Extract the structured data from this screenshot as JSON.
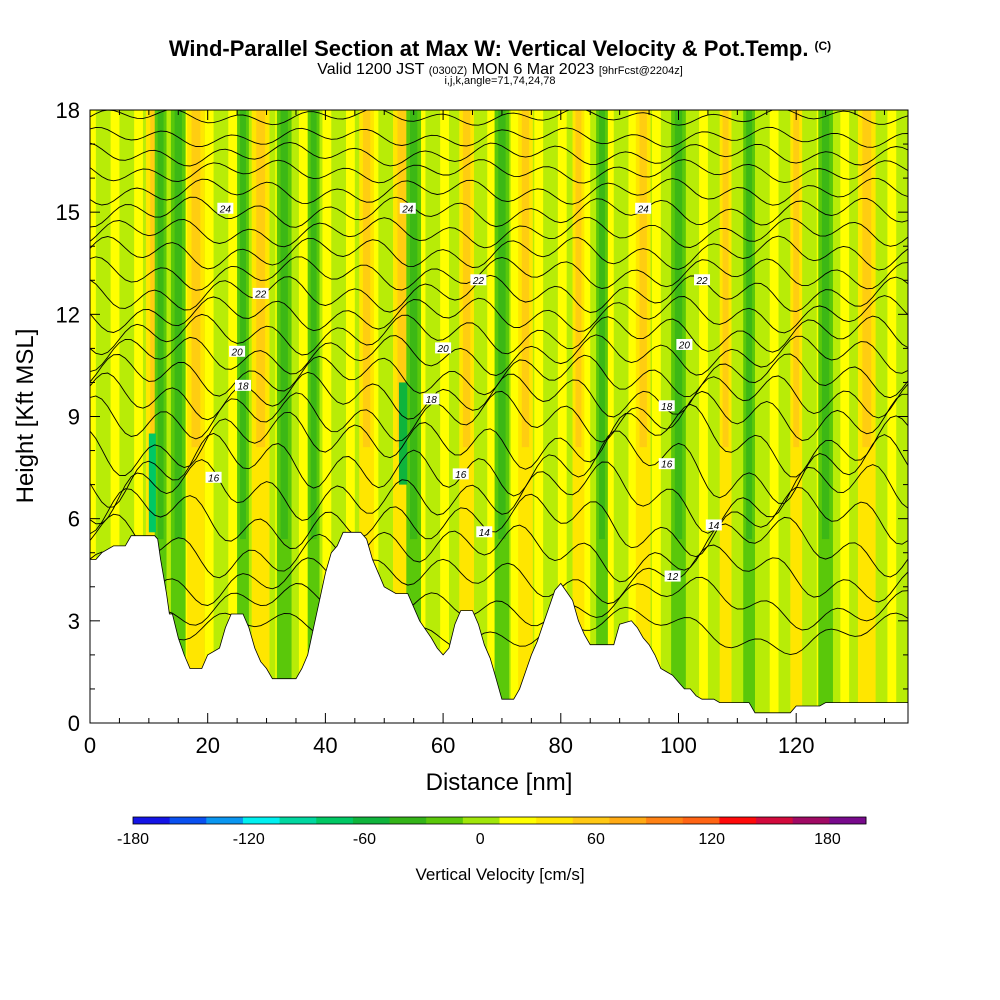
{
  "header": {
    "title": "Wind-Parallel Section at Max W: Vertical Velocity & Pot.Temp.",
    "copyright": "(C)",
    "valid_main": "Valid 1200 JST",
    "valid_utc": "(0300Z)",
    "valid_date": "MON 6 Mar 2023",
    "forecast": "[9hrFcst@2204z]",
    "indices": "i,j,k,angle=71,74,24,78"
  },
  "chart_data": {
    "type": "heatmap",
    "xlabel": "Distance [nm]",
    "ylabel": "Height [Kft MSL]",
    "xlim": [
      0,
      139
    ],
    "ylim": [
      0,
      18
    ],
    "x_ticks": [
      0,
      20,
      40,
      60,
      80,
      100,
      120
    ],
    "y_ticks": [
      0,
      3,
      6,
      9,
      12,
      15,
      18
    ],
    "grid": false,
    "colorbar": {
      "title": "Vertical Velocity [cm/s]",
      "range": [
        -180,
        200
      ],
      "tick_values": [
        -180,
        -120,
        -60,
        0,
        60,
        120,
        180
      ],
      "tick_labels": [
        "-180",
        "-120",
        "-60",
        "0",
        "60",
        "120",
        "180"
      ],
      "colors": [
        "#1414e6",
        "#0a50f0",
        "#0a96f0",
        "#00f0f0",
        "#00d7a0",
        "#00c864",
        "#0fb43c",
        "#34b418",
        "#5ac80a",
        "#a0e60a",
        "#ffff00",
        "#ffe600",
        "#ffc814",
        "#ffaa14",
        "#ff8214",
        "#ff6414",
        "#ff0a0a",
        "#d20a3c",
        "#a00a64",
        "#780a8c"
      ]
    },
    "terrain": [
      [
        0,
        4.8
      ],
      [
        1,
        4.8
      ],
      [
        2,
        5.0
      ],
      [
        4,
        5.2
      ],
      [
        6,
        5.2
      ],
      [
        7,
        5.5
      ],
      [
        11,
        5.5
      ],
      [
        11.5,
        5.4
      ],
      [
        12,
        4.8
      ],
      [
        13,
        3.8
      ],
      [
        13.5,
        3.2
      ],
      [
        14,
        3.2
      ],
      [
        15,
        2.5
      ],
      [
        16,
        2.0
      ],
      [
        17,
        1.6
      ],
      [
        19,
        1.6
      ],
      [
        20,
        2.0
      ],
      [
        22,
        2.2
      ],
      [
        23,
        2.8
      ],
      [
        24,
        3.2
      ],
      [
        26,
        3.2
      ],
      [
        27,
        2.8
      ],
      [
        28,
        2.2
      ],
      [
        29,
        1.8
      ],
      [
        30,
        1.6
      ],
      [
        31,
        1.3
      ],
      [
        35,
        1.3
      ],
      [
        36,
        1.6
      ],
      [
        37,
        2.0
      ],
      [
        38,
        2.8
      ],
      [
        39,
        3.6
      ],
      [
        40,
        4.4
      ],
      [
        41,
        5.0
      ],
      [
        42,
        5.2
      ],
      [
        43,
        5.6
      ],
      [
        46,
        5.6
      ],
      [
        47,
        5.4
      ],
      [
        48,
        4.8
      ],
      [
        49,
        4.4
      ],
      [
        50,
        4.0
      ],
      [
        52,
        3.8
      ],
      [
        54,
        3.8
      ],
      [
        55,
        3.4
      ],
      [
        56,
        3.0
      ],
      [
        58,
        2.5
      ],
      [
        59,
        2.2
      ],
      [
        60,
        2.0
      ],
      [
        61,
        2.2
      ],
      [
        62,
        2.9
      ],
      [
        63,
        3.3
      ],
      [
        65,
        3.3
      ],
      [
        66,
        2.9
      ],
      [
        67,
        2.3
      ],
      [
        68,
        1.9
      ],
      [
        69,
        1.3
      ],
      [
        70,
        0.7
      ],
      [
        72,
        0.7
      ],
      [
        73,
        1.0
      ],
      [
        74,
        1.5
      ],
      [
        75,
        2.0
      ],
      [
        76,
        2.4
      ],
      [
        77,
        2.9
      ],
      [
        78,
        3.4
      ],
      [
        79,
        3.9
      ],
      [
        80,
        4.1
      ],
      [
        82,
        3.6
      ],
      [
        83,
        3.0
      ],
      [
        84,
        2.6
      ],
      [
        85,
        2.3
      ],
      [
        89,
        2.3
      ],
      [
        90,
        2.9
      ],
      [
        92,
        3.0
      ],
      [
        93,
        2.8
      ],
      [
        94,
        2.5
      ],
      [
        95,
        2.3
      ],
      [
        96,
        2.0
      ],
      [
        97,
        1.6
      ],
      [
        98,
        1.5
      ],
      [
        99,
        1.4
      ],
      [
        100,
        1.2
      ],
      [
        101,
        1.0
      ],
      [
        102,
        1.0
      ],
      [
        103,
        0.8
      ],
      [
        104,
        0.7
      ],
      [
        106,
        0.7
      ],
      [
        107,
        0.6
      ],
      [
        112,
        0.6
      ],
      [
        113,
        0.3
      ],
      [
        119,
        0.3
      ],
      [
        120,
        0.5
      ],
      [
        124,
        0.5
      ],
      [
        125,
        0.6
      ],
      [
        139,
        0.6
      ]
    ],
    "updraft_bands": [
      {
        "x": 11,
        "w": 3
      },
      {
        "x": 18,
        "w": 3
      },
      {
        "x": 29,
        "w": 3
      },
      {
        "x": 47,
        "w": 2.5
      },
      {
        "x": 53,
        "w": 3
      },
      {
        "x": 64,
        "w": 2.5
      },
      {
        "x": 74,
        "w": 2.5
      },
      {
        "x": 83,
        "w": 2
      },
      {
        "x": 94,
        "w": 2.5
      },
      {
        "x": 108,
        "w": 2
      },
      {
        "x": 120,
        "w": 2
      },
      {
        "x": 132,
        "w": 3
      }
    ],
    "downdraft_bands": [
      {
        "x": 12,
        "w": 2
      },
      {
        "x": 15,
        "w": 2.5
      },
      {
        "x": 26,
        "w": 2
      },
      {
        "x": 33,
        "w": 2.5
      },
      {
        "x": 38,
        "w": 2
      },
      {
        "x": 55,
        "w": 2.5
      },
      {
        "x": 70,
        "w": 2.5
      },
      {
        "x": 87,
        "w": 2
      },
      {
        "x": 100,
        "w": 2.5
      },
      {
        "x": 112,
        "w": 2
      },
      {
        "x": 125,
        "w": 2.5
      }
    ],
    "isentropes": {
      "unit_note": "potential temperature contours",
      "levels": [
        {
          "base": 17.8,
          "amp": 0.25
        },
        {
          "base": 17.2,
          "amp": 0.3
        },
        {
          "base": 16.7,
          "amp": 0.35
        },
        {
          "base": 16.2,
          "amp": 0.35
        },
        {
          "base": 15.6,
          "amp": 0.4
        },
        {
          "base": 15.0,
          "amp": 0.45
        },
        {
          "base": 14.4,
          "amp": 0.45
        },
        {
          "base": 13.8,
          "amp": 0.5
        },
        {
          "base": 13.2,
          "amp": 0.5
        },
        {
          "base": 12.6,
          "amp": 0.55
        },
        {
          "base": 12.0,
          "amp": 0.55
        },
        {
          "base": 11.4,
          "amp": 0.6
        },
        {
          "base": 10.8,
          "amp": 0.6
        },
        {
          "base": 10.2,
          "amp": 0.65
        },
        {
          "base": 9.6,
          "amp": 0.7
        },
        {
          "base": 9.0,
          "amp": 0.75
        },
        {
          "base": 8.3,
          "amp": 0.8
        },
        {
          "base": 7.5,
          "amp": 0.85
        },
        {
          "base": 6.7,
          "amp": 0.8
        },
        {
          "base": 5.9,
          "amp": 0.75
        },
        {
          "base": 5.1,
          "amp": 0.7
        },
        {
          "base": 4.3,
          "amp": 0.6
        },
        {
          "base": 3.5,
          "amp": 0.5
        },
        {
          "base": 2.7,
          "amp": 0.4
        }
      ]
    },
    "contour_labels": [
      {
        "text": "24",
        "x": 23,
        "y": 15.1
      },
      {
        "text": "24",
        "x": 54,
        "y": 15.1
      },
      {
        "text": "24",
        "x": 94,
        "y": 15.1
      },
      {
        "text": "22",
        "x": 29,
        "y": 12.6
      },
      {
        "text": "22",
        "x": 66,
        "y": 13.0
      },
      {
        "text": "22",
        "x": 104,
        "y": 13.0
      },
      {
        "text": "20",
        "x": 25,
        "y": 10.9
      },
      {
        "text": "20",
        "x": 60,
        "y": 11.0
      },
      {
        "text": "20",
        "x": 101,
        "y": 11.1
      },
      {
        "text": "18",
        "x": 26,
        "y": 9.9
      },
      {
        "text": "18",
        "x": 58,
        "y": 9.5
      },
      {
        "text": "18",
        "x": 98,
        "y": 9.3
      },
      {
        "text": "16",
        "x": 21,
        "y": 7.2
      },
      {
        "text": "16",
        "x": 63,
        "y": 7.3
      },
      {
        "text": "16",
        "x": 98,
        "y": 7.6
      },
      {
        "text": "14",
        "x": 67,
        "y": 5.6
      },
      {
        "text": "14",
        "x": 106,
        "y": 5.8
      },
      {
        "text": "12",
        "x": 99,
        "y": 4.3
      }
    ]
  }
}
